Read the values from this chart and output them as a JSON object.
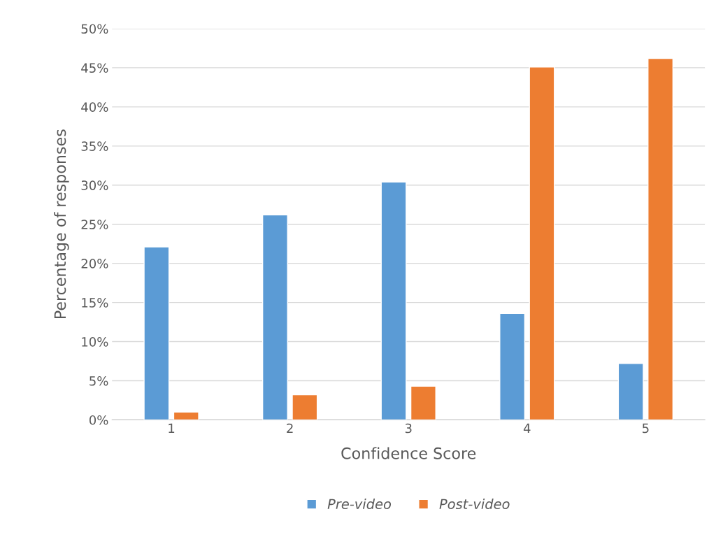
{
  "chart_data": {
    "type": "bar",
    "xlabel": "Confidence Score",
    "ylabel": "Percentage of responses",
    "categories": [
      "1",
      "2",
      "3",
      "4",
      "5"
    ],
    "series": [
      {
        "name": "Pre-video",
        "color": "#5b9bd5",
        "values": [
          22.1,
          26.2,
          30.4,
          13.6,
          7.2
        ]
      },
      {
        "name": "Post-video",
        "color": "#ed7d31",
        "values": [
          1.0,
          3.2,
          4.3,
          45.1,
          46.2
        ]
      }
    ],
    "ylim": [
      0,
      50
    ],
    "yticks": [
      {
        "value": 0,
        "label": "0%"
      },
      {
        "value": 5,
        "label": "5%"
      },
      {
        "value": 10,
        "label": "10%"
      },
      {
        "value": 15,
        "label": "15%"
      },
      {
        "value": 20,
        "label": "20%"
      },
      {
        "value": 25,
        "label": "25%"
      },
      {
        "value": 30,
        "label": "30%"
      },
      {
        "value": 35,
        "label": "35%"
      },
      {
        "value": 40,
        "label": "40%"
      },
      {
        "value": 45,
        "label": "45%"
      },
      {
        "value": 50,
        "label": "50%"
      }
    ],
    "grid": "y",
    "legend": "bottom"
  }
}
